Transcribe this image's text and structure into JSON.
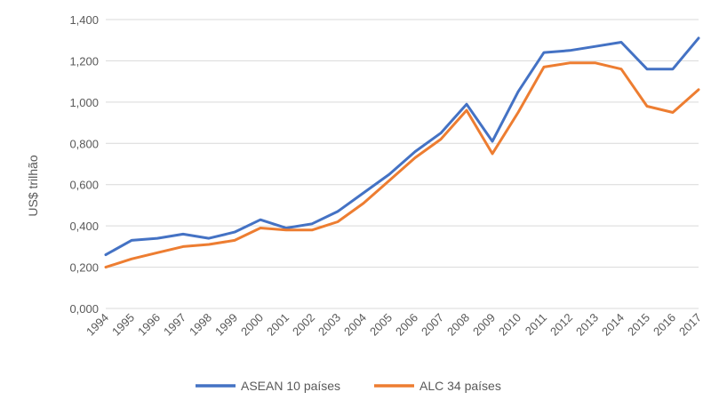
{
  "chart_data": {
    "type": "line",
    "ylabel": "US$ trilhão",
    "xlabel": "",
    "ylim": [
      0,
      1.4
    ],
    "y_ticks": [
      "0,000",
      "0,200",
      "0,400",
      "0,600",
      "0,800",
      "1,000",
      "1,200",
      "1,400"
    ],
    "grid": true,
    "legend_position": "bottom",
    "categories": [
      "1994",
      "1995",
      "1996",
      "1997",
      "1998",
      "1999",
      "2000",
      "2001",
      "2002",
      "2003",
      "2004",
      "2005",
      "2006",
      "2007",
      "2008",
      "2009",
      "2010",
      "2011",
      "2012",
      "2013",
      "2014",
      "2015",
      "2016",
      "2017"
    ],
    "series": [
      {
        "name": "ASEAN 10 países",
        "color": "#4472C4",
        "values": [
          0.26,
          0.33,
          0.34,
          0.36,
          0.34,
          0.37,
          0.43,
          0.39,
          0.41,
          0.47,
          0.56,
          0.65,
          0.76,
          0.85,
          0.99,
          0.81,
          1.05,
          1.24,
          1.25,
          1.27,
          1.29,
          1.16,
          1.16,
          1.31
        ]
      },
      {
        "name": "ALC 34 países",
        "color": "#ED7D31",
        "values": [
          0.2,
          0.24,
          0.27,
          0.3,
          0.31,
          0.33,
          0.39,
          0.38,
          0.38,
          0.42,
          0.51,
          0.62,
          0.73,
          0.82,
          0.96,
          0.75,
          0.95,
          1.17,
          1.19,
          1.19,
          1.16,
          0.98,
          0.95,
          1.06
        ]
      }
    ]
  }
}
